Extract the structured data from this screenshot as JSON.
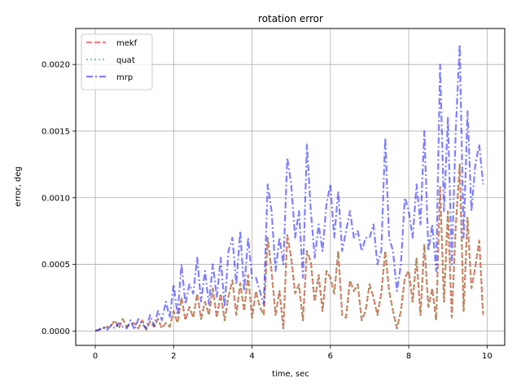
{
  "chart_data": {
    "type": "line",
    "title": "rotation error",
    "xlabel": "time, sec",
    "ylabel": "error, deg",
    "xlim": [
      -0.5,
      10.45
    ],
    "ylim": [
      -0.000108,
      0.00227
    ],
    "xticks": [
      0,
      2,
      4,
      6,
      8,
      10
    ],
    "xtick_labels": [
      "0",
      "2",
      "4",
      "6",
      "8",
      "10"
    ],
    "yticks": [
      0,
      0.0005,
      0.001,
      0.0015,
      0.002
    ],
    "ytick_labels": [
      "0.0000",
      "0.0005",
      "0.0010",
      "0.0015",
      "0.0020"
    ],
    "grid": true,
    "legend": "top-left",
    "x": [
      0,
      0.1,
      0.2,
      0.3,
      0.4,
      0.5,
      0.6,
      0.7,
      0.8,
      0.9,
      1,
      1.1,
      1.2,
      1.3,
      1.4,
      1.5,
      1.6,
      1.7,
      1.8,
      1.9,
      2,
      2.1,
      2.2,
      2.3,
      2.4,
      2.5,
      2.6,
      2.7,
      2.8,
      2.9,
      3,
      3.1,
      3.2,
      3.3,
      3.4,
      3.5,
      3.6,
      3.7,
      3.8,
      3.9,
      4,
      4.1,
      4.2,
      4.3,
      4.4,
      4.5,
      4.6,
      4.7,
      4.8,
      4.9,
      5,
      5.1,
      5.2,
      5.3,
      5.4,
      5.5,
      5.6,
      5.7,
      5.8,
      5.9,
      6,
      6.1,
      6.2,
      6.3,
      6.4,
      6.5,
      6.6,
      6.7,
      6.8,
      6.9,
      7,
      7.1,
      7.2,
      7.3,
      7.4,
      7.5,
      7.6,
      7.7,
      7.8,
      7.9,
      8,
      8.1,
      8.2,
      8.3,
      8.4,
      8.5,
      8.6,
      8.7,
      8.8,
      8.9,
      9,
      9.1,
      9.2,
      9.3,
      9.4,
      9.5,
      9.6,
      9.7,
      9.8,
      9.9
    ],
    "series": [
      {
        "name": "mekf",
        "color": "#ff0000",
        "dash": "dashed",
        "values": [
          0,
          1e-05,
          2e-05,
          3e-05,
          4e-05,
          8e-05,
          2e-05,
          9e-05,
          3e-05,
          5e-05,
          6e-05,
          2e-05,
          8e-05,
          1e-05,
          7e-05,
          3e-05,
          9e-05,
          2e-05,
          6e-05,
          3e-05,
          0.00015,
          6e-05,
          0.00025,
          8e-05,
          0.00018,
          0.0001,
          0.00028,
          9e-05,
          0.00022,
          0.00012,
          0.00032,
          0.0001,
          0.00028,
          8e-05,
          0.00026,
          0.00038,
          0.00012,
          0.00036,
          0.00015,
          0.00042,
          0.0001,
          0.0003,
          0.00018,
          0.00012,
          0.0007,
          0.00045,
          0.00012,
          0.0003,
          2e-05,
          0.00072,
          0.00055,
          0.00028,
          0.00035,
          8e-05,
          0.0006,
          0.00052,
          0.00022,
          0.00042,
          0.00015,
          0.00045,
          0.0004,
          0.00028,
          0.0006,
          0.00012,
          0.0001,
          0.00038,
          0.0003,
          0.00035,
          8e-05,
          0.00015,
          0.00035,
          0.00025,
          0.00012,
          0.00028,
          0.0006,
          0.0003,
          0.00015,
          2e-05,
          0.00015,
          0.0004,
          0.00045,
          0.00022,
          0.00055,
          0.00012,
          0.00065,
          0.00018,
          0.00032,
          8e-05,
          0.00108,
          0.00022,
          0.0009,
          0.0001,
          0.00078,
          0.00125,
          0.00015,
          0.00085,
          0.00032,
          0.00048,
          0.00068,
          0.00012
        ]
      },
      {
        "name": "quat",
        "color": "#2ca02c",
        "dash": "dotted",
        "values": [
          0,
          1e-05,
          2e-05,
          3e-05,
          4e-05,
          8e-05,
          2e-05,
          9e-05,
          3e-05,
          5e-05,
          6e-05,
          2e-05,
          8e-05,
          1e-05,
          7e-05,
          3e-05,
          9e-05,
          2e-05,
          6e-05,
          3e-05,
          0.00015,
          6e-05,
          0.00025,
          8e-05,
          0.00018,
          0.0001,
          0.00028,
          9e-05,
          0.00022,
          0.00012,
          0.00032,
          0.0001,
          0.00028,
          8e-05,
          0.00026,
          0.00038,
          0.00012,
          0.00036,
          0.00015,
          0.00042,
          0.0001,
          0.0003,
          0.00018,
          0.00012,
          0.0007,
          0.00045,
          0.00012,
          0.0003,
          2e-05,
          0.00072,
          0.00055,
          0.00028,
          0.00035,
          8e-05,
          0.0006,
          0.00052,
          0.00022,
          0.00042,
          0.00015,
          0.00045,
          0.0004,
          0.00028,
          0.0006,
          0.00012,
          0.0001,
          0.00038,
          0.0003,
          0.00035,
          8e-05,
          0.00015,
          0.00035,
          0.00025,
          0.00012,
          0.00028,
          0.0006,
          0.0003,
          0.00015,
          2e-05,
          0.00015,
          0.0004,
          0.00045,
          0.00022,
          0.00055,
          0.00012,
          0.00065,
          0.00018,
          0.00032,
          8e-05,
          0.00108,
          0.00022,
          0.0009,
          0.0001,
          0.00078,
          0.00125,
          0.00015,
          0.00085,
          0.00032,
          0.00048,
          0.00068,
          0.00012
        ]
      },
      {
        "name": "mrp",
        "color": "#0000ff",
        "dash": "dashdot",
        "values": [
          0,
          1e-05,
          3e-05,
          1e-05,
          4e-05,
          2e-05,
          6e-05,
          3e-05,
          2e-05,
          8e-05,
          1e-05,
          9e-05,
          5e-05,
          2e-05,
          0.00012,
          4e-05,
          0.00015,
          8e-05,
          0.00022,
          0.0001,
          0.00035,
          0.00012,
          0.0005,
          0.0002,
          0.00035,
          0.00028,
          0.00055,
          0.00022,
          0.00045,
          0.0002,
          0.0005,
          0.00025,
          0.00055,
          0.00018,
          0.0006,
          0.0007,
          0.00035,
          0.00075,
          0.0003,
          0.0007,
          0.0004,
          0.0004,
          0.0003,
          0.0002,
          0.0011,
          0.0009,
          0.00045,
          0.0007,
          0.0005,
          0.0013,
          0.0011,
          0.0007,
          0.0009,
          0.0004,
          0.0014,
          0.0009,
          0.00055,
          0.0008,
          0.0006,
          0.00095,
          0.0011,
          0.0007,
          0.00105,
          0.0006,
          0.00075,
          0.0009,
          0.0007,
          0.00075,
          0.0006,
          0.0007,
          0.0007,
          0.0008,
          0.0005,
          0.0006,
          0.00145,
          0.0007,
          0.0006,
          0.0003,
          0.0005,
          0.001,
          0.0009,
          0.0007,
          0.0011,
          0.0008,
          0.0015,
          0.0006,
          0.0008,
          0.00045,
          0.002,
          0.0009,
          0.0016,
          0.0005,
          0.0015,
          0.00215,
          0.0007,
          0.00165,
          0.0009,
          0.00125,
          0.0014,
          0.0011
        ]
      }
    ]
  }
}
